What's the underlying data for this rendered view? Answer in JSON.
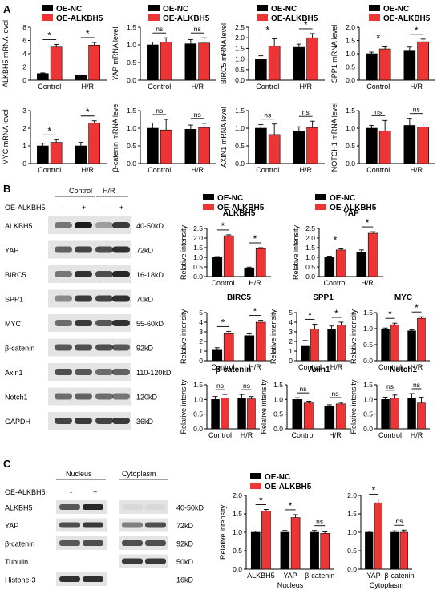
{
  "colors": {
    "nc": "#000000",
    "alk": "#ee3535",
    "blot_bg": "#e4e4e4",
    "band": "#1c1c1c"
  },
  "panels": {
    "A": "A",
    "B": "B",
    "C": "C"
  },
  "legend": {
    "nc": "OE-NC",
    "alk": "OE-ALKBH5"
  },
  "sig": {
    "star": "*",
    "ns": "ns"
  },
  "blot_B": {
    "group_control": "Control",
    "group_hr": "H/R",
    "treatment_label": "OE-ALKBH5",
    "lane_signs": [
      "-",
      "+",
      "-",
      "+"
    ],
    "rows": [
      {
        "protein": "ALKBH5",
        "size": "40-50kD"
      },
      {
        "protein": "YAP",
        "size": "72kD"
      },
      {
        "protein": "BIRC5",
        "size": "16-18kD"
      },
      {
        "protein": "SPP1",
        "size": "70kD"
      },
      {
        "protein": "MYC",
        "size": "55-60kD"
      },
      {
        "protein": "β-catenin",
        "size": "92kD"
      },
      {
        "protein": "Axin1",
        "size": "110-120kD"
      },
      {
        "protein": "Notch1",
        "size": "120kD"
      },
      {
        "protein": "GAPDH",
        "size": "36kD"
      }
    ]
  },
  "blot_C": {
    "group_nucleus": "Nucleus",
    "group_cytoplasm": "Cytoplasm",
    "treatment_label": "OE-ALKBH5",
    "lane_signs": [
      "-",
      "+"
    ],
    "rows": [
      {
        "protein": "ALKBH5",
        "size": "40-50kD"
      },
      {
        "protein": "YAP",
        "size": "72kD"
      },
      {
        "protein": "β-catenin",
        "size": "92kD"
      },
      {
        "protein": "Tubulin",
        "size": "50kD"
      },
      {
        "protein": "Histone-3",
        "size": "16kD"
      }
    ]
  },
  "chart_data": [
    {
      "id": "A-ALKBH5",
      "type": "bar",
      "ylabel": "ALKBH5 mRNA level",
      "categories": [
        "Control",
        "H/R"
      ],
      "ylim": [
        0,
        8
      ],
      "yticks": [
        0,
        2,
        4,
        6,
        8
      ],
      "series": [
        {
          "name": "OE-NC",
          "values": [
            1.0,
            0.7
          ],
          "err": [
            0.1,
            0.1
          ]
        },
        {
          "name": "OE-ALKBH5",
          "values": [
            5.0,
            5.3
          ],
          "err": [
            0.4,
            0.4
          ]
        }
      ],
      "sig": [
        "*",
        "*"
      ]
    },
    {
      "id": "A-YAP",
      "type": "bar",
      "ylabel": "YAP mRNA level",
      "categories": [
        "Control",
        "H/R"
      ],
      "ylim": [
        0,
        1.5
      ],
      "yticks": [
        0.0,
        0.5,
        1.0,
        1.5
      ],
      "series": [
        {
          "name": "OE-NC",
          "values": [
            1.0,
            1.03
          ],
          "err": [
            0.08,
            0.12
          ]
        },
        {
          "name": "OE-ALKBH5",
          "values": [
            1.08,
            1.05
          ],
          "err": [
            0.12,
            0.15
          ]
        }
      ],
      "sig": [
        "ns",
        "ns"
      ]
    },
    {
      "id": "A-BIRC5",
      "type": "bar",
      "ylabel": "BIRC5 mRNA level",
      "categories": [
        "Control",
        "H/R"
      ],
      "ylim": [
        0,
        2.5
      ],
      "yticks": [
        0.0,
        0.5,
        1.0,
        1.5,
        2.0,
        2.5
      ],
      "series": [
        {
          "name": "OE-NC",
          "values": [
            1.0,
            1.55
          ],
          "err": [
            0.15,
            0.15
          ]
        },
        {
          "name": "OE-ALKBH5",
          "values": [
            1.6,
            2.0
          ],
          "err": [
            0.35,
            0.2
          ]
        }
      ],
      "sig": [
        "*",
        "*"
      ]
    },
    {
      "id": "A-SPP1",
      "type": "bar",
      "ylabel": "SPP1 mRNA level",
      "categories": [
        "Control",
        "H/R"
      ],
      "ylim": [
        0,
        2.0
      ],
      "yticks": [
        0.0,
        0.5,
        1.0,
        1.5,
        2.0
      ],
      "series": [
        {
          "name": "OE-NC",
          "values": [
            1.0,
            1.1
          ],
          "err": [
            0.06,
            0.15
          ]
        },
        {
          "name": "OE-ALKBH5",
          "values": [
            1.18,
            1.45
          ],
          "err": [
            0.08,
            0.1
          ]
        }
      ],
      "sig": [
        "*",
        "*"
      ]
    },
    {
      "id": "A-MYC",
      "type": "bar",
      "ylabel": "MYC mRNA level",
      "categories": [
        "Control",
        "H/R"
      ],
      "ylim": [
        0,
        3
      ],
      "yticks": [
        0,
        1,
        2,
        3
      ],
      "series": [
        {
          "name": "OE-NC",
          "values": [
            1.0,
            1.0
          ],
          "err": [
            0.15,
            0.2
          ]
        },
        {
          "name": "OE-ALKBH5",
          "values": [
            1.2,
            2.3
          ],
          "err": [
            0.15,
            0.12
          ]
        }
      ],
      "sig": [
        "*",
        "*"
      ]
    },
    {
      "id": "A-bcatenin",
      "type": "bar",
      "ylabel": "β-catenin mRNA level",
      "categories": [
        "Control",
        "H/R"
      ],
      "ylim": [
        0,
        1.5
      ],
      "yticks": [
        0.0,
        0.5,
        1.0,
        1.5
      ],
      "series": [
        {
          "name": "OE-NC",
          "values": [
            1.0,
            0.97
          ],
          "err": [
            0.15,
            0.12
          ]
        },
        {
          "name": "OE-ALKBH5",
          "values": [
            0.95,
            1.02
          ],
          "err": [
            0.3,
            0.12
          ]
        }
      ],
      "sig": [
        "ns",
        "ns"
      ]
    },
    {
      "id": "A-AXIN1",
      "type": "bar",
      "ylabel": "AXIN1 mRNA level",
      "categories": [
        "Control",
        "H/R"
      ],
      "ylim": [
        0,
        1.5
      ],
      "yticks": [
        0.0,
        0.5,
        1.0,
        1.5
      ],
      "series": [
        {
          "name": "OE-NC",
          "values": [
            1.0,
            0.92
          ],
          "err": [
            0.1,
            0.12
          ]
        },
        {
          "name": "OE-ALKBH5",
          "values": [
            0.82,
            1.02
          ],
          "err": [
            0.3,
            0.18
          ]
        }
      ],
      "sig": [
        "ns",
        "ns"
      ]
    },
    {
      "id": "A-NOTCH1",
      "type": "bar",
      "ylabel": "NOTCH1 mRNA level",
      "categories": [
        "Control",
        "H/R"
      ],
      "ylim": [
        0,
        1.5
      ],
      "yticks": [
        0.0,
        0.5,
        1.0,
        1.5
      ],
      "series": [
        {
          "name": "OE-NC",
          "values": [
            1.0,
            1.08
          ],
          "err": [
            0.08,
            0.2
          ]
        },
        {
          "name": "OE-ALKBH5",
          "values": [
            0.92,
            1.03
          ],
          "err": [
            0.3,
            0.12
          ]
        }
      ],
      "sig": [
        "ns",
        "ns"
      ]
    },
    {
      "id": "B-ALKBH5",
      "type": "bar",
      "title": "ALKBH5",
      "ylabel": "Relative intensity",
      "categories": [
        "Control",
        "H/R"
      ],
      "ylim": [
        0,
        2.5
      ],
      "yticks": [
        0.0,
        0.5,
        1.0,
        1.5,
        2.0,
        2.5
      ],
      "series": [
        {
          "name": "OE-NC",
          "values": [
            1.0,
            0.45
          ],
          "err": [
            0.04,
            0.04
          ]
        },
        {
          "name": "OE-ALKBH5",
          "values": [
            2.12,
            1.45
          ],
          "err": [
            0.05,
            0.05
          ]
        }
      ],
      "sig": [
        "*",
        "*"
      ]
    },
    {
      "id": "B-YAP",
      "type": "bar",
      "title": "YAP",
      "ylabel": "Relative intensity",
      "categories": [
        "Control",
        "H/R"
      ],
      "ylim": [
        0,
        2.5
      ],
      "yticks": [
        0.0,
        0.5,
        1.0,
        1.5,
        2.0,
        2.5
      ],
      "series": [
        {
          "name": "OE-NC",
          "values": [
            1.0,
            1.28
          ],
          "err": [
            0.06,
            0.1
          ]
        },
        {
          "name": "OE-ALKBH5",
          "values": [
            1.38,
            2.25
          ],
          "err": [
            0.06,
            0.08
          ]
        }
      ],
      "sig": [
        "*",
        "*"
      ]
    },
    {
      "id": "B-BIRC5",
      "type": "bar",
      "title": "BIRC5",
      "ylabel": "Relative intensity",
      "categories": [
        "Control",
        "H/R"
      ],
      "ylim": [
        0,
        5
      ],
      "yticks": [
        0,
        1,
        2,
        3,
        4,
        5
      ],
      "series": [
        {
          "name": "OE-NC",
          "values": [
            1.1,
            2.6
          ],
          "err": [
            0.25,
            0.2
          ]
        },
        {
          "name": "OE-ALKBH5",
          "values": [
            2.8,
            4.0
          ],
          "err": [
            0.25,
            0.2
          ]
        }
      ],
      "sig": [
        "*",
        "*"
      ]
    },
    {
      "id": "B-SPP1",
      "type": "bar",
      "title": "SPP1",
      "ylabel": "Relative intensity",
      "categories": [
        "Control",
        "H/R"
      ],
      "ylim": [
        0,
        5
      ],
      "yticks": [
        0,
        1,
        2,
        3,
        4,
        5
      ],
      "series": [
        {
          "name": "OE-NC",
          "values": [
            1.5,
            3.3
          ],
          "err": [
            0.6,
            0.3
          ]
        },
        {
          "name": "OE-ALKBH5",
          "values": [
            3.3,
            3.7
          ],
          "err": [
            0.5,
            0.3
          ]
        }
      ],
      "sig": [
        "*",
        "*"
      ]
    },
    {
      "id": "B-MYC",
      "type": "bar",
      "title": "MYC",
      "ylabel": "Relative intensity",
      "categories": [
        "Control",
        "H/R"
      ],
      "ylim": [
        0,
        1.5
      ],
      "yticks": [
        0.0,
        0.5,
        1.0,
        1.5
      ],
      "series": [
        {
          "name": "OE-NC",
          "values": [
            0.97,
            0.93
          ],
          "err": [
            0.05,
            0.03
          ]
        },
        {
          "name": "OE-ALKBH5",
          "values": [
            1.12,
            1.32
          ],
          "err": [
            0.05,
            0.05
          ]
        }
      ],
      "sig": [
        "*",
        "*"
      ]
    },
    {
      "id": "B-bcatenin",
      "type": "bar",
      "title": "β-catenin",
      "ylabel": "Relative intensity",
      "categories": [
        "Control",
        "H/R"
      ],
      "ylim": [
        0,
        1.5
      ],
      "yticks": [
        0.0,
        0.5,
        1.0,
        1.5
      ],
      "series": [
        {
          "name": "OE-NC",
          "values": [
            1.0,
            1.05
          ],
          "err": [
            0.1,
            0.12
          ]
        },
        {
          "name": "OE-ALKBH5",
          "values": [
            1.05,
            1.02
          ],
          "err": [
            0.12,
            0.08
          ]
        }
      ],
      "sig": [
        "ns",
        "ns"
      ]
    },
    {
      "id": "B-Axin1",
      "type": "bar",
      "title": "Axin1",
      "ylabel": "Relative intensity",
      "categories": [
        "Control",
        "H/R"
      ],
      "ylim": [
        0,
        1.5
      ],
      "yticks": [
        0.0,
        0.5,
        1.0,
        1.5
      ],
      "series": [
        {
          "name": "OE-NC",
          "values": [
            1.0,
            0.78
          ],
          "err": [
            0.06,
            0.04
          ]
        },
        {
          "name": "OE-ALKBH5",
          "values": [
            0.88,
            0.85
          ],
          "err": [
            0.06,
            0.05
          ]
        }
      ],
      "sig": [
        "ns",
        "ns"
      ]
    },
    {
      "id": "B-Notch1",
      "type": "bar",
      "title": "Notch1",
      "ylabel": "Relative intensity",
      "categories": [
        "Control",
        "H/R"
      ],
      "ylim": [
        0,
        1.5
      ],
      "yticks": [
        0.0,
        0.5,
        1.0,
        1.5
      ],
      "series": [
        {
          "name": "OE-NC",
          "values": [
            1.0,
            1.05
          ],
          "err": [
            0.08,
            0.15
          ]
        },
        {
          "name": "OE-ALKBH5",
          "values": [
            1.05,
            0.88
          ],
          "err": [
            0.1,
            0.2
          ]
        }
      ],
      "sig": [
        "ns",
        "ns"
      ]
    },
    {
      "id": "C-Nucleus",
      "type": "bar",
      "ylabel": "Relative intensity",
      "xlabel": "Nucleus",
      "categories": [
        "ALKBH5",
        "YAP",
        "β-catenin"
      ],
      "ylim": [
        0,
        2.0
      ],
      "yticks": [
        0.0,
        0.5,
        1.0,
        1.5,
        2.0
      ],
      "series": [
        {
          "name": "OE-NC",
          "values": [
            1.0,
            1.0,
            1.0
          ],
          "err": [
            0.03,
            0.05,
            0.05
          ]
        },
        {
          "name": "OE-ALKBH5",
          "values": [
            1.58,
            1.4,
            0.97
          ],
          "err": [
            0.04,
            0.08,
            0.04
          ]
        }
      ],
      "sig": [
        "*",
        "*",
        "ns"
      ]
    },
    {
      "id": "C-Cytoplasm",
      "type": "bar",
      "ylabel": "",
      "xlabel": "Cytoplasm",
      "categories": [
        "YAP",
        "β-catenin"
      ],
      "ylim": [
        0,
        2.0
      ],
      "yticks": [
        0.0,
        0.5,
        1.0,
        1.5,
        2.0
      ],
      "series": [
        {
          "name": "OE-NC",
          "values": [
            1.0,
            1.0
          ],
          "err": [
            0.03,
            0.04
          ]
        },
        {
          "name": "OE-ALKBH5",
          "values": [
            1.8,
            1.0
          ],
          "err": [
            0.1,
            0.06
          ]
        }
      ],
      "sig": [
        "*",
        "ns"
      ]
    }
  ]
}
